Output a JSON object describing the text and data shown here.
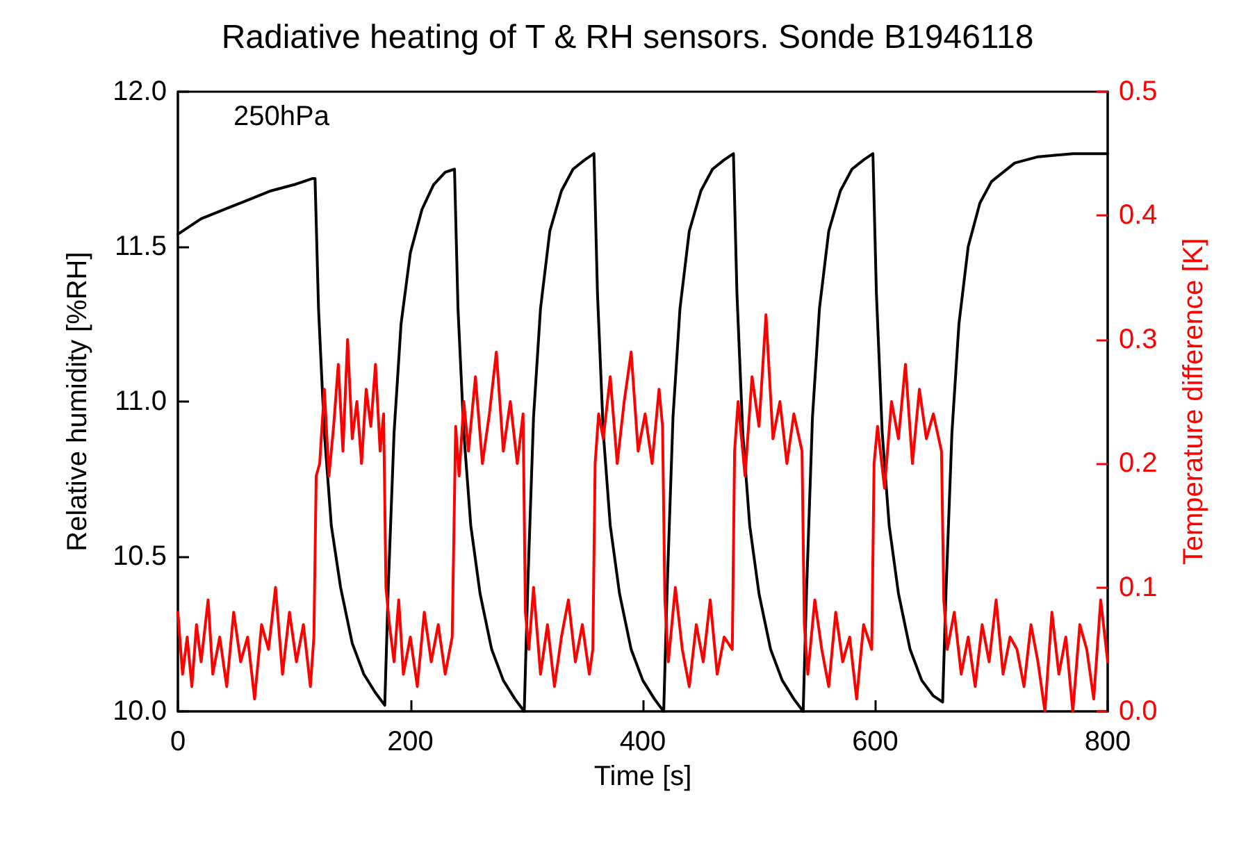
{
  "chart_data": {
    "type": "line",
    "title": "Radiative heating of T & RH sensors. Sonde B1946118",
    "xlabel": "Time [s]",
    "ylabel": "Relative humidity [%RH]",
    "y2label": "Temperature difference [K]",
    "annotations": [
      "250hPa"
    ],
    "xlim": [
      0,
      800
    ],
    "xticks": [
      0,
      200,
      400,
      600,
      800
    ],
    "ylim": [
      10,
      12
    ],
    "yticks": [
      {
        "value": 10,
        "label": "10.0"
      },
      {
        "value": 10.5,
        "label": "10.5"
      },
      {
        "value": 11,
        "label": "11.0"
      },
      {
        "value": 11.5,
        "label": "11.5"
      },
      {
        "value": 12,
        "label": "12.0"
      }
    ],
    "y2lim": [
      0,
      0.5
    ],
    "y2ticks": [
      {
        "value": 0,
        "label": "0.0"
      },
      {
        "value": 0.1,
        "label": "0.1"
      },
      {
        "value": 0.2,
        "label": "0.2"
      },
      {
        "value": 0.3,
        "label": "0.3"
      },
      {
        "value": 0.4,
        "label": "0.4"
      },
      {
        "value": 0.5,
        "label": "0.5"
      }
    ],
    "grid": false,
    "marker": "none",
    "line_style": "solid",
    "series": [
      {
        "color": "#000000",
        "x": [
          0,
          20,
          40,
          60,
          80,
          100,
          116,
          118,
          121,
          126,
          132,
          140,
          150,
          160,
          170,
          178,
          181,
          186,
          192,
          200,
          210,
          220,
          230,
          238,
          241,
          246,
          252,
          260,
          270,
          280,
          290,
          298,
          301,
          306,
          312,
          320,
          330,
          340,
          350,
          358,
          361,
          366,
          372,
          380,
          390,
          400,
          410,
          418,
          421,
          426,
          432,
          440,
          450,
          460,
          470,
          478,
          481,
          486,
          492,
          500,
          510,
          520,
          530,
          538,
          541,
          546,
          552,
          560,
          570,
          580,
          590,
          598,
          601,
          606,
          612,
          620,
          630,
          640,
          650,
          658,
          661,
          666,
          672,
          680,
          690,
          700,
          720,
          740,
          770,
          800
        ],
        "values": [
          11.54,
          11.59,
          11.62,
          11.65,
          11.68,
          11.7,
          11.72,
          11.72,
          11.3,
          10.9,
          10.6,
          10.4,
          10.22,
          10.12,
          10.06,
          10.02,
          10.4,
          10.9,
          11.25,
          11.48,
          11.62,
          11.7,
          11.74,
          11.75,
          11.3,
          10.9,
          10.6,
          10.38,
          10.2,
          10.1,
          10.04,
          10.0,
          10.4,
          10.95,
          11.3,
          11.55,
          11.68,
          11.75,
          11.78,
          11.8,
          11.35,
          10.9,
          10.6,
          10.38,
          10.2,
          10.1,
          10.04,
          10.0,
          10.4,
          10.95,
          11.3,
          11.55,
          11.68,
          11.75,
          11.78,
          11.8,
          11.35,
          10.9,
          10.6,
          10.38,
          10.2,
          10.1,
          10.04,
          10.0,
          10.4,
          10.95,
          11.3,
          11.55,
          11.68,
          11.75,
          11.78,
          11.8,
          11.35,
          10.9,
          10.6,
          10.38,
          10.2,
          10.1,
          10.05,
          10.03,
          10.4,
          10.9,
          11.25,
          11.5,
          11.64,
          11.71,
          11.77,
          11.79,
          11.8,
          11.8
        ]
      },
      {
        "color": "#ff0000",
        "axis": "y2",
        "x": [
          0,
          4,
          8,
          12,
          16,
          20,
          26,
          30,
          36,
          42,
          48,
          54,
          60,
          66,
          72,
          78,
          84,
          90,
          96,
          102,
          108,
          114,
          117,
          119,
          122,
          126,
          130,
          134,
          138,
          142,
          146,
          150,
          154,
          158,
          162,
          166,
          170,
          174,
          177,
          179,
          182,
          186,
          190,
          194,
          200,
          206,
          212,
          218,
          224,
          230,
          236,
          239,
          242,
          246,
          250,
          256,
          262,
          268,
          274,
          280,
          286,
          292,
          297,
          299,
          302,
          306,
          312,
          318,
          324,
          330,
          336,
          342,
          348,
          354,
          357,
          359,
          362,
          366,
          372,
          378,
          384,
          390,
          396,
          402,
          408,
          414,
          417,
          419,
          422,
          428,
          434,
          440,
          446,
          452,
          458,
          464,
          470,
          477,
          479,
          482,
          488,
          494,
          500,
          506,
          512,
          518,
          524,
          530,
          537,
          539,
          542,
          548,
          554,
          560,
          566,
          572,
          578,
          584,
          590,
          597,
          599,
          602,
          608,
          614,
          620,
          626,
          632,
          638,
          644,
          650,
          657,
          659,
          662,
          668,
          674,
          680,
          686,
          692,
          698,
          704,
          710,
          716,
          722,
          728,
          734,
          740,
          746,
          752,
          758,
          764,
          770,
          776,
          782,
          788,
          794,
          800
        ],
        "values": [
          0.08,
          0.03,
          0.06,
          0.02,
          0.07,
          0.04,
          0.09,
          0.03,
          0.06,
          0.02,
          0.08,
          0.04,
          0.06,
          0.01,
          0.07,
          0.05,
          0.1,
          0.03,
          0.08,
          0.04,
          0.07,
          0.02,
          0.06,
          0.19,
          0.2,
          0.26,
          0.19,
          0.23,
          0.28,
          0.21,
          0.3,
          0.22,
          0.25,
          0.2,
          0.26,
          0.23,
          0.28,
          0.21,
          0.24,
          0.1,
          0.07,
          0.04,
          0.09,
          0.03,
          0.06,
          0.02,
          0.08,
          0.04,
          0.07,
          0.03,
          0.06,
          0.23,
          0.19,
          0.25,
          0.21,
          0.27,
          0.2,
          0.24,
          0.29,
          0.21,
          0.25,
          0.2,
          0.24,
          0.08,
          0.05,
          0.1,
          0.03,
          0.07,
          0.02,
          0.06,
          0.09,
          0.04,
          0.07,
          0.03,
          0.05,
          0.2,
          0.24,
          0.22,
          0.27,
          0.2,
          0.25,
          0.29,
          0.21,
          0.24,
          0.2,
          0.26,
          0.23,
          0.09,
          0.04,
          0.1,
          0.05,
          0.02,
          0.07,
          0.04,
          0.09,
          0.03,
          0.06,
          0.05,
          0.21,
          0.25,
          0.19,
          0.27,
          0.23,
          0.32,
          0.22,
          0.25,
          0.2,
          0.24,
          0.21,
          0.07,
          0.03,
          0.09,
          0.05,
          0.02,
          0.08,
          0.04,
          0.06,
          0.01,
          0.07,
          0.05,
          0.2,
          0.23,
          0.18,
          0.25,
          0.22,
          0.28,
          0.2,
          0.26,
          0.22,
          0.24,
          0.21,
          0.09,
          0.05,
          0.08,
          0.03,
          0.06,
          0.02,
          0.07,
          0.04,
          0.09,
          0.03,
          0.06,
          0.05,
          0.02,
          0.07,
          0.04,
          0.0,
          0.08,
          0.03,
          0.06,
          0.0,
          0.07,
          0.05,
          0.01,
          0.09,
          0.04
        ]
      }
    ]
  }
}
